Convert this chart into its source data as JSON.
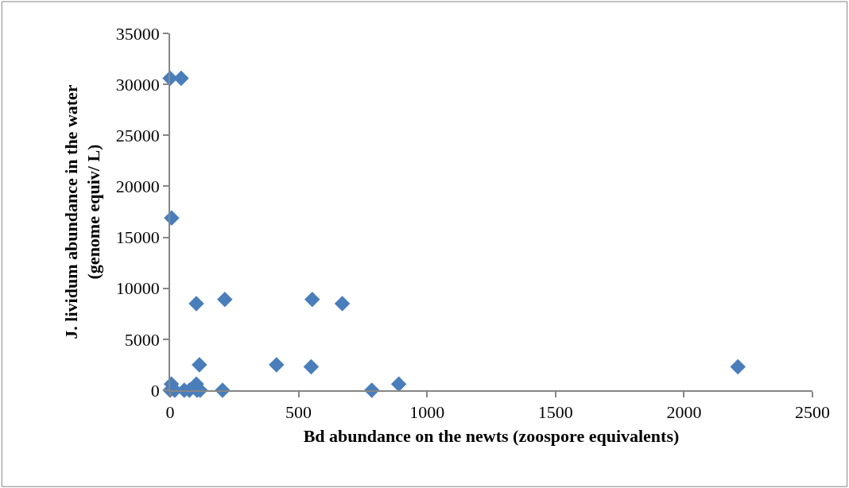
{
  "chart_data": {
    "type": "scatter",
    "xlabel": "Bd abundance on the newts (zoospore equivalents)",
    "ylabel": "J. lividum abundance in the water\n(genome equiv/ L)",
    "x": [
      0,
      43,
      6,
      102,
      213,
      553,
      670,
      114,
      414,
      549,
      2210,
      785,
      890,
      204,
      5,
      102,
      0,
      18,
      55,
      75,
      105,
      117
    ],
    "series": [
      {
        "color": "#4a7ebb",
        "values": [
          30600,
          30600,
          16900,
          8500,
          8900,
          8900,
          8500,
          2500,
          2500,
          2300,
          2300,
          0,
          600,
          0,
          600,
          600,
          0,
          0,
          0,
          0,
          0,
          0
        ]
      }
    ],
    "xlim": [
      0,
      2500
    ],
    "xticks": [
      0,
      500,
      1000,
      1500,
      2000,
      2500
    ],
    "ylim": [
      0,
      35000
    ],
    "yticks": [
      0,
      5000,
      10000,
      15000,
      20000,
      25000,
      30000,
      35000
    ],
    "marker": "diamond"
  }
}
